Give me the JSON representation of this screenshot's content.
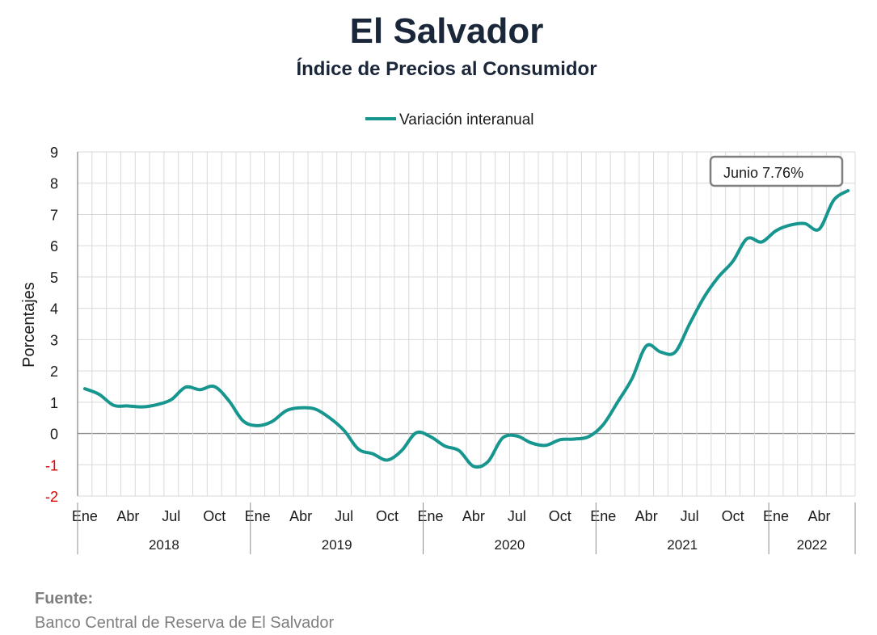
{
  "title": "El Salvador",
  "subtitle": "Índice de Precios al Consumidor",
  "source": {
    "label": "Fuente:",
    "text": "Banco Central de Reserva de El Salvador"
  },
  "chart_data": {
    "type": "line",
    "title": "El Salvador",
    "subtitle": "Índice de Precios al Consumidor",
    "ylabel": "Porcentajes",
    "xlabel": "",
    "ylim": [
      -2,
      9
    ],
    "y_ticks": [
      "9",
      "8",
      "7",
      "6",
      "5",
      "4",
      "3",
      "2",
      "1",
      "0",
      "-1",
      "-2"
    ],
    "grid": true,
    "legend_position": "top-center",
    "month_tick_labels": [
      "Ene",
      "Abr",
      "Jul",
      "Oct",
      "Ene",
      "Abr",
      "Jul",
      "Oct",
      "Ene",
      "Abr",
      "Jul",
      "Oct",
      "Ene",
      "Abr",
      "Jul",
      "Oct",
      "Ene",
      "Abr"
    ],
    "years": [
      "2018",
      "2019",
      "2020",
      "2021",
      "2022"
    ],
    "series_color": "#17968f",
    "negative_tick_color": "#e00000",
    "annotation": "Junio 7.76%",
    "x": [
      "2018-01",
      "2018-02",
      "2018-03",
      "2018-04",
      "2018-05",
      "2018-06",
      "2018-07",
      "2018-08",
      "2018-09",
      "2018-10",
      "2018-11",
      "2018-12",
      "2019-01",
      "2019-02",
      "2019-03",
      "2019-04",
      "2019-05",
      "2019-06",
      "2019-07",
      "2019-08",
      "2019-09",
      "2019-10",
      "2019-11",
      "2019-12",
      "2020-01",
      "2020-02",
      "2020-03",
      "2020-04",
      "2020-05",
      "2020-06",
      "2020-07",
      "2020-08",
      "2020-09",
      "2020-10",
      "2020-11",
      "2020-12",
      "2021-01",
      "2021-02",
      "2021-03",
      "2021-04",
      "2021-05",
      "2021-06",
      "2021-07",
      "2021-08",
      "2021-09",
      "2021-10",
      "2021-11",
      "2021-12",
      "2022-01",
      "2022-02",
      "2022-03",
      "2022-04",
      "2022-05",
      "2022-06"
    ],
    "series": [
      {
        "name": "Variación interanual",
        "values": [
          1.43,
          1.25,
          0.9,
          0.88,
          0.85,
          0.92,
          1.08,
          1.48,
          1.4,
          1.5,
          1.05,
          0.4,
          0.25,
          0.38,
          0.73,
          0.82,
          0.78,
          0.5,
          0.1,
          -0.5,
          -0.65,
          -0.85,
          -0.55,
          0.02,
          -0.1,
          -0.4,
          -0.55,
          -1.05,
          -0.9,
          -0.15,
          -0.08,
          -0.3,
          -0.38,
          -0.2,
          -0.18,
          -0.1,
          0.28,
          1.0,
          1.75,
          2.8,
          2.6,
          2.6,
          3.5,
          4.35,
          5.0,
          5.5,
          6.23,
          6.12,
          6.48,
          6.66,
          6.71,
          6.53,
          7.45,
          7.76
        ]
      }
    ]
  }
}
